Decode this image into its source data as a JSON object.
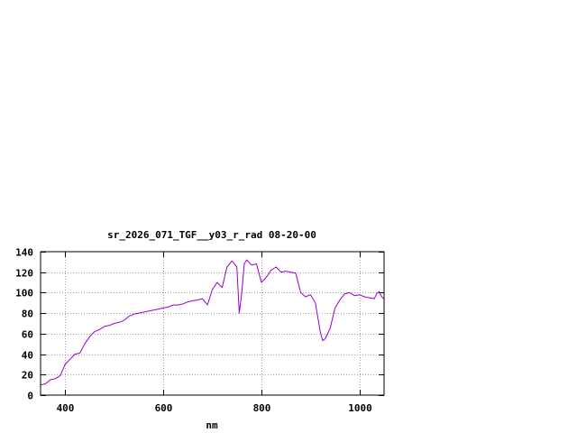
{
  "chart_data": {
    "type": "line",
    "title": "sr_2026_071_TGF__y03_r_rad 08-20-00",
    "xlabel": "nm",
    "ylabel": "",
    "xlim": [
      350,
      1050
    ],
    "ylim": [
      0,
      140
    ],
    "x_ticks": [
      400,
      600,
      800,
      1000
    ],
    "y_ticks": [
      0,
      20,
      40,
      60,
      80,
      100,
      120,
      140
    ],
    "grid": true,
    "line_color": "#9400d3",
    "series": [
      {
        "x": [
          350,
          360,
          370,
          380,
          390,
          400,
          410,
          420,
          430,
          440,
          450,
          460,
          470,
          480,
          490,
          500,
          510,
          520,
          530,
          540,
          550,
          560,
          570,
          580,
          590,
          600,
          610,
          620,
          630,
          640,
          650,
          660,
          670,
          680,
          690,
          700,
          710,
          720,
          730,
          740,
          750,
          755,
          760,
          765,
          770,
          780,
          790,
          800,
          810,
          820,
          830,
          840,
          850,
          860,
          870,
          880,
          890,
          900,
          910,
          920,
          925,
          930,
          935,
          940,
          950,
          960,
          970,
          980,
          990,
          1000,
          1010,
          1020,
          1030,
          1035,
          1040,
          1045,
          1050
        ],
        "values": [
          10,
          11,
          15,
          16,
          19,
          30,
          35,
          40,
          41,
          50,
          57,
          62,
          64,
          67,
          68,
          70,
          71,
          73,
          77,
          79,
          80,
          81,
          82,
          83,
          84,
          85,
          86,
          88,
          88,
          89,
          91,
          92,
          93,
          94,
          88,
          103,
          110,
          105,
          125,
          131,
          125,
          80,
          100,
          128,
          132,
          127,
          128,
          110,
          115,
          122,
          125,
          120,
          121,
          120,
          119,
          100,
          96,
          98,
          90,
          62,
          53,
          55,
          60,
          65,
          85,
          93,
          99,
          100,
          97,
          98,
          96,
          95,
          94,
          99,
          101,
          96,
          94
        ]
      }
    ]
  }
}
